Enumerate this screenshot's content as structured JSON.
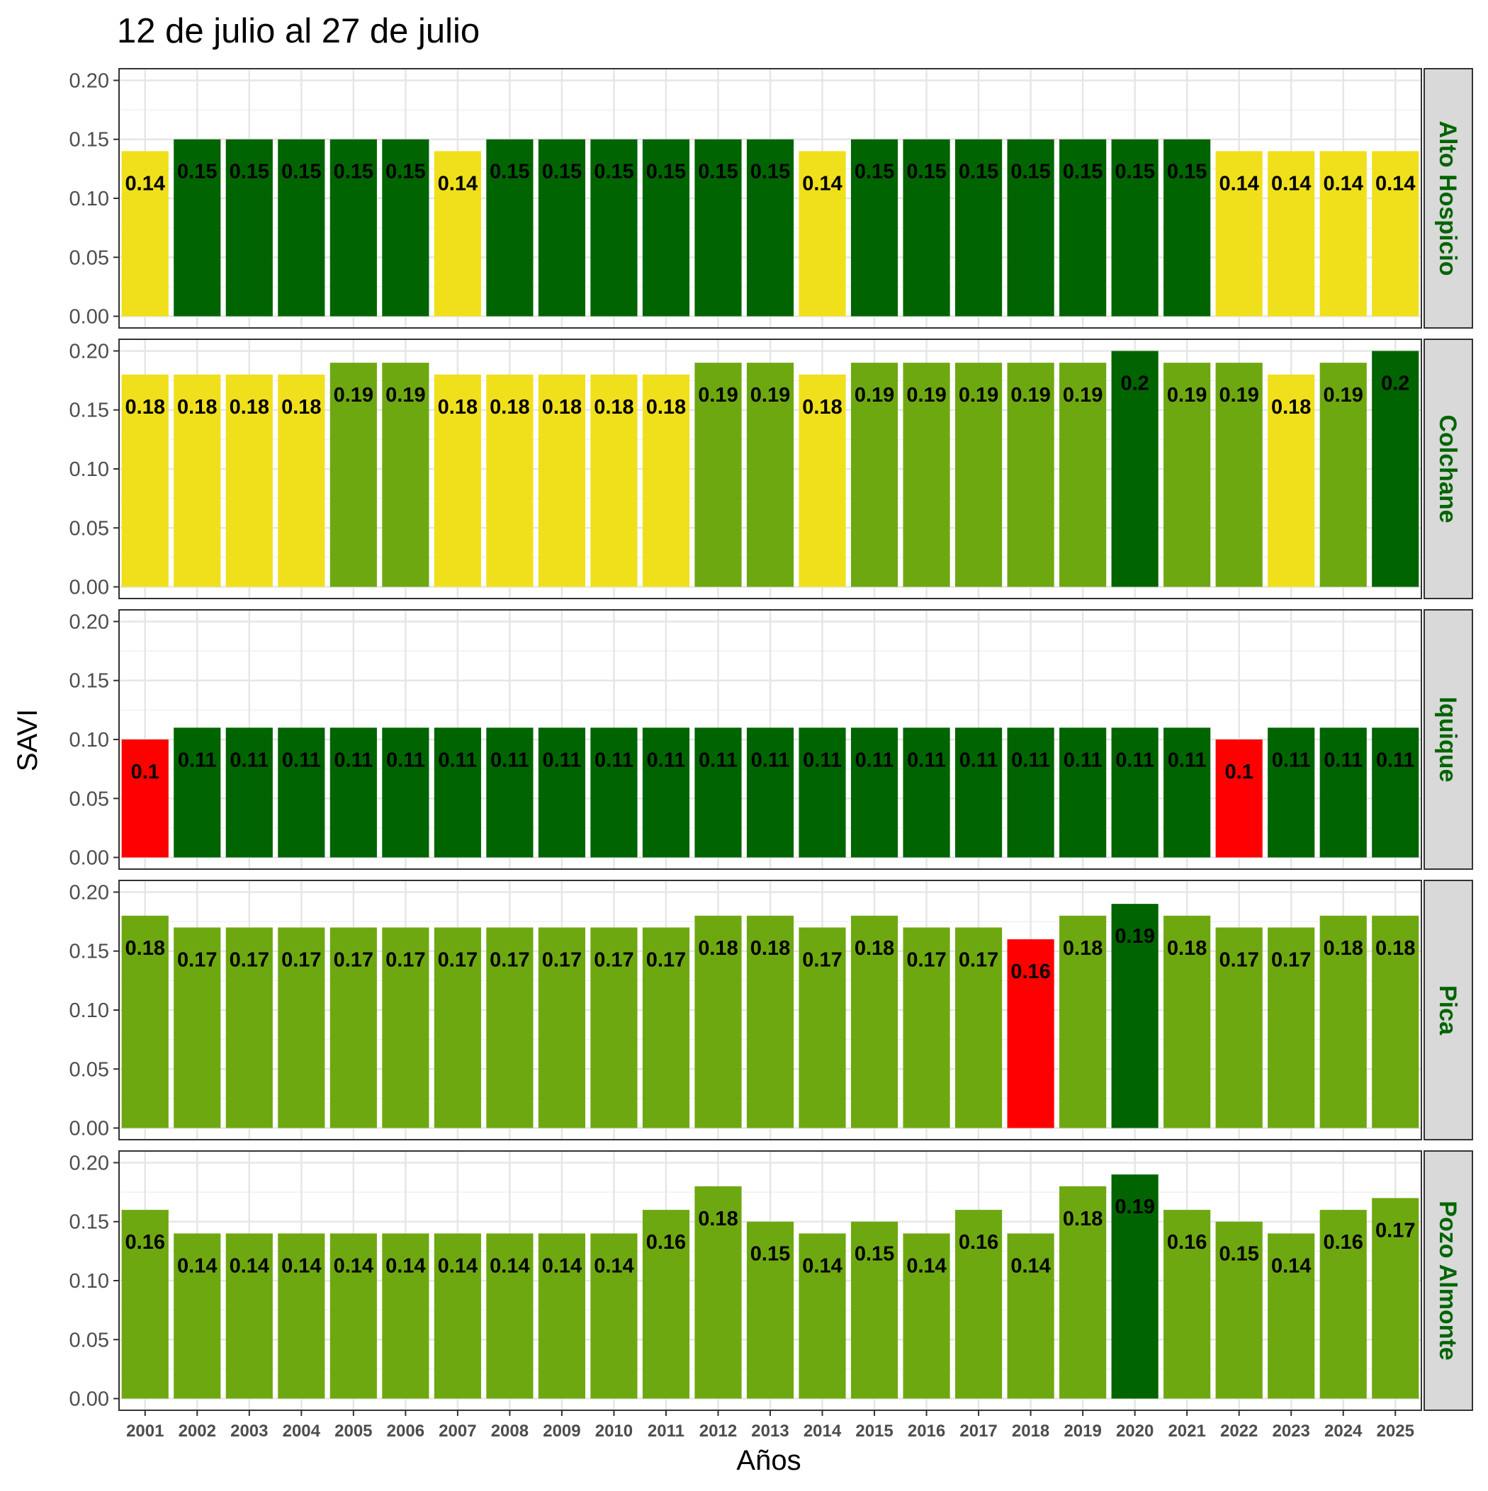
{
  "chart_data": {
    "type": "bar",
    "title": "12 de julio al 27 de julio",
    "xlabel": "Años",
    "ylabel": "SAVI",
    "ylim": [
      0,
      0.2
    ],
    "yticks": [
      "0.00",
      "0.05",
      "0.10",
      "0.15",
      "0.20"
    ],
    "grid": true,
    "legend": "none",
    "strip_text_color": "#006400",
    "colors": {
      "dark_green": "#006400",
      "light_green": "#6ea811",
      "yellow": "#f0e01c",
      "red": "#ff0000"
    },
    "categories": [
      "2001",
      "2002",
      "2003",
      "2004",
      "2005",
      "2006",
      "2007",
      "2008",
      "2009",
      "2010",
      "2011",
      "2012",
      "2013",
      "2014",
      "2015",
      "2016",
      "2017",
      "2018",
      "2019",
      "2020",
      "2021",
      "2022",
      "2023",
      "2024",
      "2025"
    ],
    "series": [
      {
        "name": "Alto Hospicio",
        "values": [
          0.14,
          0.15,
          0.15,
          0.15,
          0.15,
          0.15,
          0.14,
          0.15,
          0.15,
          0.15,
          0.15,
          0.15,
          0.15,
          0.14,
          0.15,
          0.15,
          0.15,
          0.15,
          0.15,
          0.15,
          0.15,
          0.14,
          0.14,
          0.14,
          0.14
        ],
        "labels": [
          "0.14",
          "0.15",
          "0.15",
          "0.15",
          "0.15",
          "0.15",
          "0.14",
          "0.15",
          "0.15",
          "0.15",
          "0.15",
          "0.15",
          "0.15",
          "0.14",
          "0.15",
          "0.15",
          "0.15",
          "0.15",
          "0.15",
          "0.15",
          "0.15",
          "0.14",
          "0.14",
          "0.14",
          "0.14"
        ],
        "colors": [
          "yellow",
          "dark_green",
          "dark_green",
          "dark_green",
          "dark_green",
          "dark_green",
          "yellow",
          "dark_green",
          "dark_green",
          "dark_green",
          "dark_green",
          "dark_green",
          "dark_green",
          "yellow",
          "dark_green",
          "dark_green",
          "dark_green",
          "dark_green",
          "dark_green",
          "dark_green",
          "dark_green",
          "yellow",
          "yellow",
          "yellow",
          "yellow"
        ]
      },
      {
        "name": "Colchane",
        "values": [
          0.18,
          0.18,
          0.18,
          0.18,
          0.19,
          0.19,
          0.18,
          0.18,
          0.18,
          0.18,
          0.18,
          0.19,
          0.19,
          0.18,
          0.19,
          0.19,
          0.19,
          0.19,
          0.19,
          0.2,
          0.19,
          0.19,
          0.18,
          0.19,
          0.2
        ],
        "labels": [
          "0.18",
          "0.18",
          "0.18",
          "0.18",
          "0.19",
          "0.19",
          "0.18",
          "0.18",
          "0.18",
          "0.18",
          "0.18",
          "0.19",
          "0.19",
          "0.18",
          "0.19",
          "0.19",
          "0.19",
          "0.19",
          "0.19",
          "0.2",
          "0.19",
          "0.19",
          "0.18",
          "0.19",
          "0.2"
        ],
        "colors": [
          "yellow",
          "yellow",
          "yellow",
          "yellow",
          "light_green",
          "light_green",
          "yellow",
          "yellow",
          "yellow",
          "yellow",
          "yellow",
          "light_green",
          "light_green",
          "yellow",
          "light_green",
          "light_green",
          "light_green",
          "light_green",
          "light_green",
          "dark_green",
          "light_green",
          "light_green",
          "yellow",
          "light_green",
          "dark_green"
        ]
      },
      {
        "name": "Iquique",
        "values": [
          0.1,
          0.11,
          0.11,
          0.11,
          0.11,
          0.11,
          0.11,
          0.11,
          0.11,
          0.11,
          0.11,
          0.11,
          0.11,
          0.11,
          0.11,
          0.11,
          0.11,
          0.11,
          0.11,
          0.11,
          0.11,
          0.1,
          0.11,
          0.11,
          0.11
        ],
        "labels": [
          "0.1",
          "0.11",
          "0.11",
          "0.11",
          "0.11",
          "0.11",
          "0.11",
          "0.11",
          "0.11",
          "0.11",
          "0.11",
          "0.11",
          "0.11",
          "0.11",
          "0.11",
          "0.11",
          "0.11",
          "0.11",
          "0.11",
          "0.11",
          "0.11",
          "0.1",
          "0.11",
          "0.11",
          "0.11"
        ],
        "colors": [
          "red",
          "dark_green",
          "dark_green",
          "dark_green",
          "dark_green",
          "dark_green",
          "dark_green",
          "dark_green",
          "dark_green",
          "dark_green",
          "dark_green",
          "dark_green",
          "dark_green",
          "dark_green",
          "dark_green",
          "dark_green",
          "dark_green",
          "dark_green",
          "dark_green",
          "dark_green",
          "dark_green",
          "red",
          "dark_green",
          "dark_green",
          "dark_green"
        ]
      },
      {
        "name": "Pica",
        "values": [
          0.18,
          0.17,
          0.17,
          0.17,
          0.17,
          0.17,
          0.17,
          0.17,
          0.17,
          0.17,
          0.17,
          0.18,
          0.18,
          0.17,
          0.18,
          0.17,
          0.17,
          0.16,
          0.18,
          0.19,
          0.18,
          0.17,
          0.17,
          0.18,
          0.18
        ],
        "labels": [
          "0.18",
          "0.17",
          "0.17",
          "0.17",
          "0.17",
          "0.17",
          "0.17",
          "0.17",
          "0.17",
          "0.17",
          "0.17",
          "0.18",
          "0.18",
          "0.17",
          "0.18",
          "0.17",
          "0.17",
          "0.16",
          "0.18",
          "0.19",
          "0.18",
          "0.17",
          "0.17",
          "0.18",
          "0.18"
        ],
        "colors": [
          "light_green",
          "light_green",
          "light_green",
          "light_green",
          "light_green",
          "light_green",
          "light_green",
          "light_green",
          "light_green",
          "light_green",
          "light_green",
          "light_green",
          "light_green",
          "light_green",
          "light_green",
          "light_green",
          "light_green",
          "red",
          "light_green",
          "dark_green",
          "light_green",
          "light_green",
          "light_green",
          "light_green",
          "light_green"
        ]
      },
      {
        "name": "Pozo Almonte",
        "values": [
          0.16,
          0.14,
          0.14,
          0.14,
          0.14,
          0.14,
          0.14,
          0.14,
          0.14,
          0.14,
          0.16,
          0.18,
          0.15,
          0.14,
          0.15,
          0.14,
          0.16,
          0.14,
          0.18,
          0.19,
          0.16,
          0.15,
          0.14,
          0.16,
          0.17
        ],
        "labels": [
          "0.16",
          "0.14",
          "0.14",
          "0.14",
          "0.14",
          "0.14",
          "0.14",
          "0.14",
          "0.14",
          "0.14",
          "0.16",
          "0.18",
          "0.15",
          "0.14",
          "0.15",
          "0.14",
          "0.16",
          "0.14",
          "0.18",
          "0.19",
          "0.16",
          "0.15",
          "0.14",
          "0.16",
          "0.17"
        ],
        "colors": [
          "light_green",
          "light_green",
          "light_green",
          "light_green",
          "light_green",
          "light_green",
          "light_green",
          "light_green",
          "light_green",
          "light_green",
          "light_green",
          "light_green",
          "light_green",
          "light_green",
          "light_green",
          "light_green",
          "light_green",
          "light_green",
          "light_green",
          "dark_green",
          "light_green",
          "light_green",
          "light_green",
          "light_green",
          "light_green"
        ]
      }
    ]
  }
}
